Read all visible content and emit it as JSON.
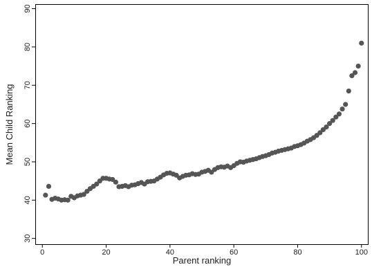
{
  "chart_data": {
    "type": "scatter",
    "xlabel": "Parent ranking",
    "ylabel": "Mean Child Ranking",
    "xlim": [
      -2,
      102
    ],
    "ylim": [
      28.5,
      91
    ],
    "xticks": [
      0,
      20,
      40,
      60,
      80,
      100
    ],
    "yticks": [
      30,
      40,
      50,
      60,
      70,
      80,
      90
    ],
    "grid": false,
    "marker_color": "#555555",
    "x": [
      1,
      2,
      3,
      4,
      5,
      6,
      7,
      8,
      9,
      10,
      11,
      12,
      13,
      14,
      15,
      16,
      17,
      18,
      19,
      20,
      21,
      22,
      23,
      24,
      25,
      26,
      27,
      28,
      29,
      30,
      31,
      32,
      33,
      34,
      35,
      36,
      37,
      38,
      39,
      40,
      41,
      42,
      43,
      44,
      45,
      46,
      47,
      48,
      49,
      50,
      51,
      52,
      53,
      54,
      55,
      56,
      57,
      58,
      59,
      60,
      61,
      62,
      63,
      64,
      65,
      66,
      67,
      68,
      69,
      70,
      71,
      72,
      73,
      74,
      75,
      76,
      77,
      78,
      79,
      80,
      81,
      82,
      83,
      84,
      85,
      86,
      87,
      88,
      89,
      90,
      91,
      92,
      93,
      94,
      95,
      96,
      97,
      98,
      99,
      100
    ],
    "y": [
      41.3,
      43.6,
      40.2,
      40.5,
      40.3,
      40.0,
      40.1,
      40.0,
      41.0,
      40.6,
      41.1,
      41.3,
      41.5,
      42.3,
      43.0,
      43.6,
      44.2,
      45.0,
      45.7,
      45.7,
      45.5,
      45.4,
      44.7,
      43.5,
      43.6,
      43.8,
      43.5,
      43.9,
      44.0,
      44.3,
      44.6,
      44.2,
      44.8,
      44.9,
      45.0,
      45.5,
      46.0,
      46.6,
      47.0,
      47.1,
      46.8,
      46.5,
      45.8,
      46.2,
      46.5,
      46.6,
      46.9,
      46.7,
      46.8,
      47.3,
      47.5,
      47.8,
      47.3,
      48.0,
      48.5,
      48.7,
      48.6,
      48.9,
      48.5,
      49.0,
      49.6,
      50.0,
      49.9,
      50.2,
      50.4,
      50.6,
      50.8,
      51.1,
      51.4,
      51.6,
      51.9,
      52.3,
      52.5,
      52.8,
      53.0,
      53.2,
      53.4,
      53.6,
      54.0,
      54.2,
      54.5,
      54.9,
      55.4,
      55.8,
      56.3,
      56.9,
      57.6,
      58.4,
      59.1,
      60.0,
      60.8,
      61.7,
      62.5,
      63.8,
      65.0,
      68.5,
      72.5,
      73.3,
      75.0,
      81.0
    ]
  }
}
